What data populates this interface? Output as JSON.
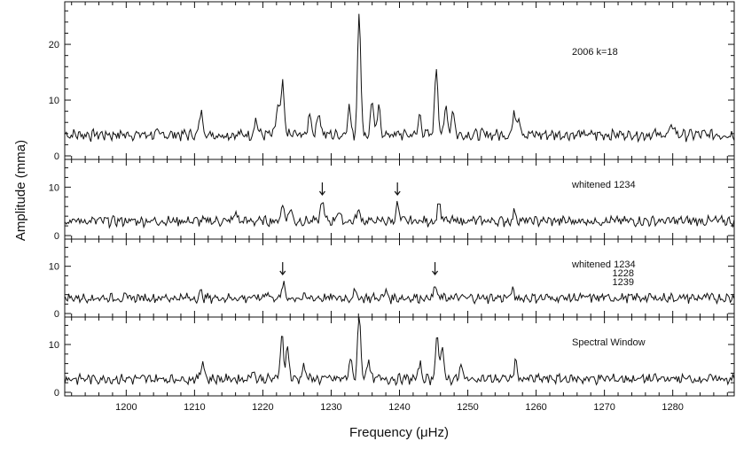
{
  "chart_data": {
    "type": "line",
    "xlabel": "Frequency (μHz)",
    "ylabel": "Amplitude (mma)",
    "xlim": [
      1191,
      1289
    ],
    "x_ticks": [
      1200,
      1210,
      1220,
      1230,
      1240,
      1250,
      1260,
      1270,
      1280
    ],
    "panels": [
      {
        "label": [
          "2006 k=18"
        ],
        "ylim": [
          0,
          27
        ],
        "y_ticks": [
          0,
          10,
          20
        ],
        "baseline": 3.0,
        "peaks": [
          [
            1234.1,
            25.5
          ],
          [
            1245.4,
            15.5
          ],
          [
            1222.9,
            12.0
          ],
          [
            1222.2,
            8.5
          ],
          [
            1232.6,
            8.0
          ],
          [
            1236.0,
            9.0
          ],
          [
            1237.0,
            7.5
          ],
          [
            1246.8,
            8.0
          ],
          [
            1247.8,
            7.5
          ],
          [
            1226.9,
            7.0
          ],
          [
            1228.2,
            7.5
          ],
          [
            1211.0,
            7.5
          ],
          [
            1219.0,
            6.0
          ],
          [
            1243.0,
            6.5
          ],
          [
            1256.8,
            7.0
          ],
          [
            1257.5,
            6.5
          ],
          [
            1280.0,
            5.0
          ]
        ],
        "markers": []
      },
      {
        "label": [
          "whitened 1234"
        ],
        "ylim": [
          0,
          15
        ],
        "y_ticks": [
          0,
          10
        ],
        "baseline": 2.2,
        "peaks": [
          [
            1228.7,
            6.5
          ],
          [
            1239.7,
            5.5
          ],
          [
            1245.8,
            6.2
          ],
          [
            1222.9,
            5.8
          ],
          [
            1224.0,
            5.0
          ],
          [
            1234.0,
            4.5
          ],
          [
            1231.0,
            4.5
          ],
          [
            1256.9,
            4.2
          ],
          [
            1216.0,
            4.0
          ]
        ],
        "markers": [
          1228.7,
          1239.7
        ]
      },
      {
        "label": [
          "whitened 1234",
          "1228",
          "1239"
        ],
        "ylim": [
          0,
          15
        ],
        "y_ticks": [
          0,
          10
        ],
        "baseline": 2.5,
        "peaks": [
          [
            1223.0,
            5.2
          ],
          [
            1245.2,
            4.8
          ],
          [
            1220.5,
            4.0
          ],
          [
            1256.5,
            4.0
          ],
          [
            1233.5,
            3.8
          ],
          [
            1238.0,
            3.8
          ],
          [
            1211.0,
            3.5
          ]
        ],
        "markers": [
          1222.9,
          1245.2
        ]
      },
      {
        "label": [
          "Spectral Window"
        ],
        "ylim": [
          0,
          15
        ],
        "y_ticks": [
          0,
          10
        ],
        "baseline": 2.0,
        "peaks": [
          [
            1234.1,
            15.5
          ],
          [
            1222.8,
            11.5
          ],
          [
            1245.5,
            11.5
          ],
          [
            1223.6,
            8.5
          ],
          [
            1246.3,
            8.0
          ],
          [
            1232.8,
            6.0
          ],
          [
            1235.4,
            6.0
          ],
          [
            1226.0,
            5.0
          ],
          [
            1243.0,
            5.0
          ],
          [
            1211.2,
            6.0
          ],
          [
            1257.0,
            5.5
          ],
          [
            1218.5,
            4.0
          ],
          [
            1249.0,
            4.5
          ]
        ],
        "markers": []
      }
    ]
  }
}
